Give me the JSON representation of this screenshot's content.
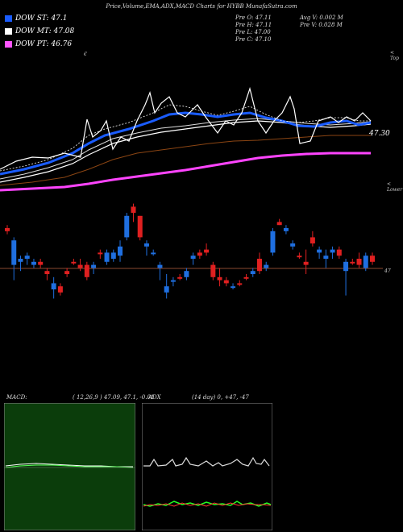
{
  "chart_data": {
    "type": "candlestick",
    "title": "Price,Volume,EMA,ADX,MACD Charts for HYBB MunafaSutra.com",
    "legend": [
      {
        "label": "DOW ST: 47.1",
        "color": "#1a5cff"
      },
      {
        "label": "DOW MT: 47.08",
        "color": "#ffffff"
      },
      {
        "label": "DOW PT: 46.76",
        "color": "#ff55ff"
      }
    ],
    "stats": {
      "prev_open": "Pre   O: 47.11",
      "prev_high": "Pre   H: 47.11",
      "prev_low": "Pre   L: 47.00",
      "prev_close": "Pre   C: 47.10",
      "avg_volume": "Avg V: 0.002  M",
      "prev_volume": "Pre   V: 0.028  M"
    },
    "ema_price_label": "47.30",
    "price_tag": "47",
    "top_marker": "< Top",
    "lower_marker": "< Lower",
    "caret_marker": "€",
    "candles": [
      {
        "o": 46.98,
        "h": 47.0,
        "l": 46.97,
        "c": 46.99,
        "dir": "down"
      },
      {
        "o": 46.87,
        "h": 46.96,
        "l": 46.82,
        "c": 46.95,
        "dir": "up"
      },
      {
        "o": 46.88,
        "h": 46.9,
        "l": 46.85,
        "c": 46.89,
        "dir": "up"
      },
      {
        "o": 46.89,
        "h": 46.91,
        "l": 46.87,
        "c": 46.9,
        "dir": "up"
      },
      {
        "o": 46.87,
        "h": 46.89,
        "l": 46.86,
        "c": 46.88,
        "dir": "up"
      },
      {
        "o": 46.87,
        "h": 46.89,
        "l": 46.86,
        "c": 46.88,
        "dir": "down"
      },
      {
        "o": 46.84,
        "h": 46.86,
        "l": 46.82,
        "c": 46.85,
        "dir": "down"
      },
      {
        "o": 46.79,
        "h": 46.83,
        "l": 46.76,
        "c": 46.81,
        "dir": "up"
      },
      {
        "o": 46.8,
        "h": 46.81,
        "l": 46.77,
        "c": 46.78,
        "dir": "down"
      },
      {
        "o": 46.84,
        "h": 46.86,
        "l": 46.83,
        "c": 46.85,
        "dir": "down"
      },
      {
        "o": 46.88,
        "h": 46.89,
        "l": 46.87,
        "c": 46.88,
        "dir": "down"
      },
      {
        "o": 46.87,
        "h": 46.89,
        "l": 46.85,
        "c": 46.86,
        "dir": "down"
      },
      {
        "o": 46.83,
        "h": 46.88,
        "l": 46.82,
        "c": 46.87,
        "dir": "down"
      },
      {
        "o": 46.86,
        "h": 46.88,
        "l": 46.84,
        "c": 46.87,
        "dir": "up"
      },
      {
        "o": 46.91,
        "h": 46.92,
        "l": 46.89,
        "c": 46.91,
        "dir": "down"
      },
      {
        "o": 46.88,
        "h": 46.92,
        "l": 46.87,
        "c": 46.91,
        "dir": "up"
      },
      {
        "o": 46.89,
        "h": 46.92,
        "l": 46.88,
        "c": 46.91,
        "dir": "up"
      },
      {
        "o": 46.9,
        "h": 46.95,
        "l": 46.88,
        "c": 46.93,
        "dir": "up"
      },
      {
        "o": 46.96,
        "h": 47.04,
        "l": 46.95,
        "c": 47.03,
        "dir": "up"
      },
      {
        "o": 47.06,
        "h": 47.07,
        "l": 47.01,
        "c": 47.04,
        "dir": "down"
      },
      {
        "o": 47.03,
        "h": 47.03,
        "l": 46.95,
        "c": 46.96,
        "dir": "down"
      },
      {
        "o": 46.93,
        "h": 46.95,
        "l": 46.9,
        "c": 46.94,
        "dir": "up"
      },
      {
        "o": 46.91,
        "h": 46.92,
        "l": 46.9,
        "c": 46.91,
        "dir": "up"
      },
      {
        "o": 46.86,
        "h": 46.88,
        "l": 46.82,
        "c": 46.87,
        "dir": "up"
      },
      {
        "o": 46.78,
        "h": 46.84,
        "l": 46.76,
        "c": 46.8,
        "dir": "up"
      },
      {
        "o": 46.82,
        "h": 46.83,
        "l": 46.8,
        "c": 46.82,
        "dir": "up"
      },
      {
        "o": 46.83,
        "h": 46.84,
        "l": 46.82,
        "c": 46.83,
        "dir": "down"
      },
      {
        "o": 46.83,
        "h": 46.86,
        "l": 46.82,
        "c": 46.85,
        "dir": "up"
      },
      {
        "o": 46.89,
        "h": 46.91,
        "l": 46.87,
        "c": 46.9,
        "dir": "up"
      },
      {
        "o": 46.9,
        "h": 46.92,
        "l": 46.89,
        "c": 46.91,
        "dir": "down"
      },
      {
        "o": 46.91,
        "h": 46.94,
        "l": 46.9,
        "c": 46.92,
        "dir": "down"
      },
      {
        "o": 46.87,
        "h": 46.88,
        "l": 46.82,
        "c": 46.83,
        "dir": "down"
      },
      {
        "o": 46.83,
        "h": 46.86,
        "l": 46.8,
        "c": 46.82,
        "dir": "down"
      },
      {
        "o": 46.82,
        "h": 46.83,
        "l": 46.8,
        "c": 46.81,
        "dir": "down"
      },
      {
        "o": 46.8,
        "h": 46.81,
        "l": 46.79,
        "c": 46.8,
        "dir": "up"
      },
      {
        "o": 46.81,
        "h": 46.82,
        "l": 46.8,
        "c": 46.81,
        "dir": "down"
      },
      {
        "o": 46.83,
        "h": 46.84,
        "l": 46.82,
        "c": 46.83,
        "dir": "down"
      },
      {
        "o": 46.84,
        "h": 46.86,
        "l": 46.83,
        "c": 46.85,
        "dir": "up"
      },
      {
        "o": 46.85,
        "h": 46.91,
        "l": 46.84,
        "c": 46.89,
        "dir": "down"
      },
      {
        "o": 46.86,
        "h": 46.88,
        "l": 46.85,
        "c": 46.87,
        "dir": "up"
      },
      {
        "o": 46.91,
        "h": 46.99,
        "l": 46.9,
        "c": 46.98,
        "dir": "up"
      },
      {
        "o": 47.01,
        "h": 47.02,
        "l": 47.0,
        "c": 47.0,
        "dir": "down"
      },
      {
        "o": 46.98,
        "h": 47.0,
        "l": 46.97,
        "c": 46.99,
        "dir": "up"
      },
      {
        "o": 46.94,
        "h": 46.95,
        "l": 46.92,
        "c": 46.93,
        "dir": "up"
      },
      {
        "o": 46.9,
        "h": 46.91,
        "l": 46.89,
        "c": 46.9,
        "dir": "down"
      },
      {
        "o": 46.88,
        "h": 46.92,
        "l": 46.84,
        "c": 46.87,
        "dir": "down"
      },
      {
        "o": 46.96,
        "h": 46.98,
        "l": 46.93,
        "c": 46.94,
        "dir": "down"
      },
      {
        "o": 46.91,
        "h": 46.93,
        "l": 46.89,
        "c": 46.92,
        "dir": "up"
      },
      {
        "o": 46.89,
        "h": 46.92,
        "l": 46.86,
        "c": 46.9,
        "dir": "up"
      },
      {
        "o": 46.92,
        "h": 46.93,
        "l": 46.89,
        "c": 46.91,
        "dir": "up"
      },
      {
        "o": 46.92,
        "h": 46.93,
        "l": 46.89,
        "c": 46.9,
        "dir": "down"
      },
      {
        "o": 46.85,
        "h": 46.89,
        "l": 46.77,
        "c": 46.88,
        "dir": "up"
      },
      {
        "o": 46.88,
        "h": 46.89,
        "l": 46.87,
        "c": 46.88,
        "dir": "down"
      },
      {
        "o": 46.89,
        "h": 46.91,
        "l": 46.86,
        "c": 46.87,
        "dir": "down"
      },
      {
        "o": 46.86,
        "h": 46.91,
        "l": 46.85,
        "c": 46.9,
        "dir": "up"
      },
      {
        "o": 46.9,
        "h": 46.91,
        "l": 46.87,
        "c": 46.88,
        "dir": "down"
      }
    ],
    "macd": {
      "label": "MACD:",
      "params": "( 12,26,9 ) 47.09, 47.1, -0.01"
    },
    "adx": {
      "label": "ADX",
      "params": "(14  day) 0, +47, -47"
    }
  }
}
